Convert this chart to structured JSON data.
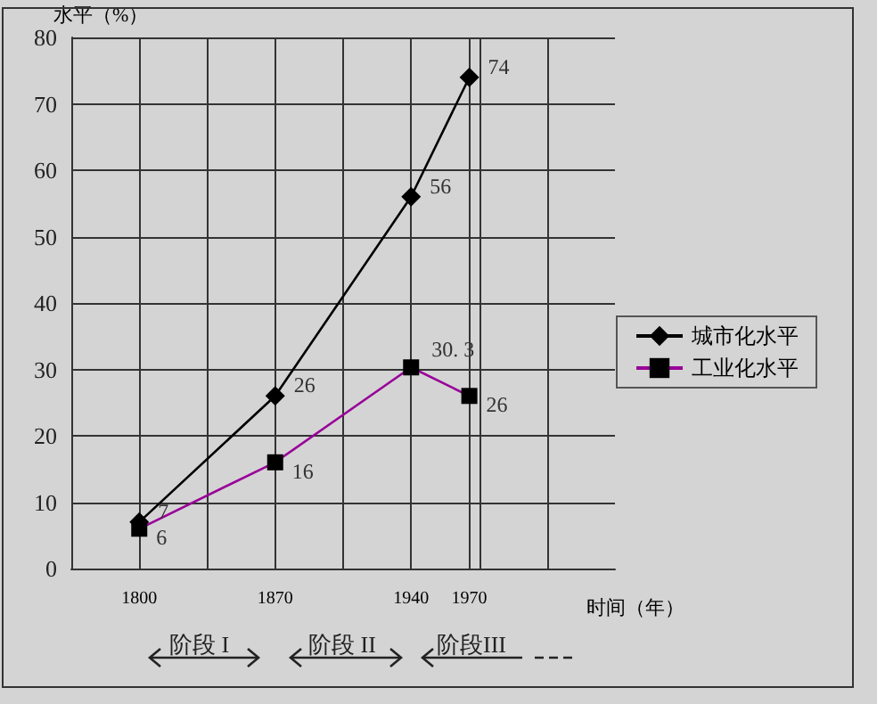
{
  "chart_data": {
    "type": "line",
    "ylabel": "水平（%）",
    "xlabel": "时间（年）",
    "x": [
      1800,
      1870,
      1940,
      1970
    ],
    "series": [
      {
        "name": "城市化水平",
        "color": "#000000",
        "marker": "diamond",
        "values": [
          7,
          26,
          56,
          74
        ]
      },
      {
        "name": "工业化水平",
        "color": "#990099",
        "marker": "square",
        "values": [
          6,
          16,
          30.3,
          26
        ],
        "value_labels": [
          "6",
          "16",
          "30. 3",
          "26"
        ]
      }
    ],
    "data_labels": true,
    "xlim": [
      1765,
      2045
    ],
    "xticks": [
      1800,
      {
        "value": 1835,
        "label": null
      },
      1870,
      {
        "value": 1905,
        "label": null
      },
      1940,
      1970,
      {
        "value": 1975,
        "label": null
      },
      {
        "value": 2010,
        "label": null
      }
    ],
    "ylim": [
      0,
      80
    ],
    "yticks": [
      0,
      10,
      20,
      30,
      40,
      50,
      60,
      70,
      80
    ],
    "grid": true,
    "legend": "right",
    "line_style": "solid",
    "annotations": [
      "阶段 I",
      "阶段 II",
      "阶段III"
    ]
  }
}
